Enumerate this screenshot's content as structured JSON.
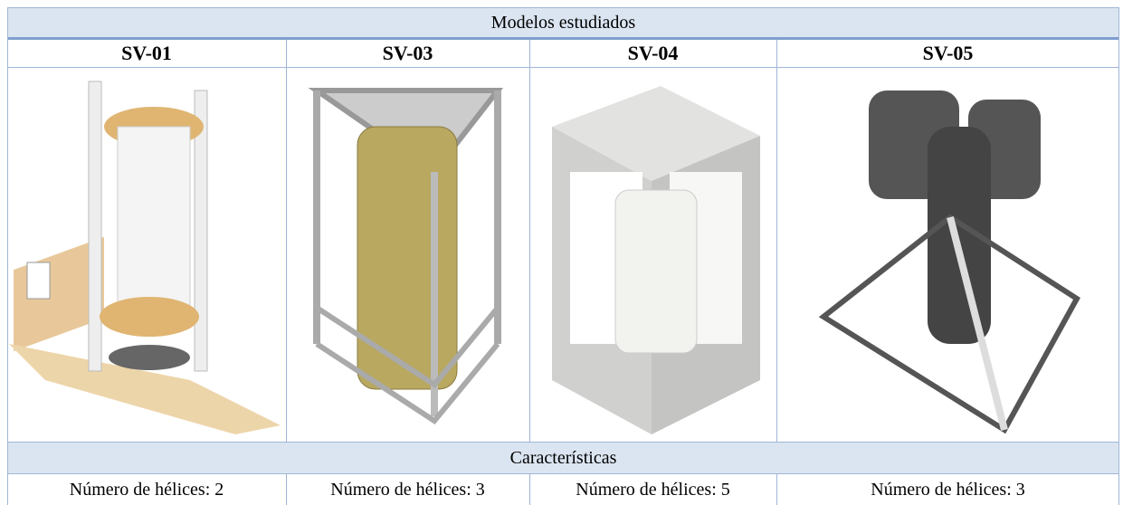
{
  "table": {
    "title": "Modelos estudiados",
    "models": [
      "SV-01",
      "SV-03",
      "SV-04",
      "SV-05"
    ],
    "section": "Características",
    "rows": [
      [
        "Número de hélices: 2",
        "Número de hélices: 3",
        "Número de hélices: 5",
        "Número de hélices: 3"
      ]
    ]
  }
}
